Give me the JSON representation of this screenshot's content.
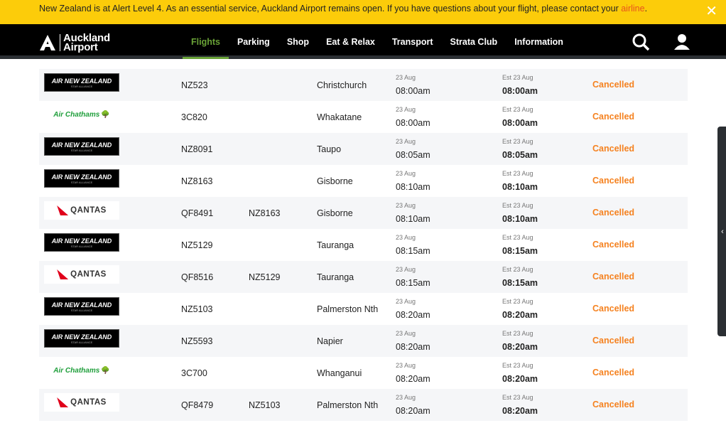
{
  "alert": {
    "text": "New Zealand is at Alert Level 4. As an essential service, Auckland Airport remains open. If you have questions about your flight, please contact your ",
    "link": "airline",
    "link_suffix": ".",
    "close": "✕"
  },
  "brand": {
    "line1": "Auckland",
    "line2": "Airport"
  },
  "nav": [
    "Flights",
    "Parking",
    "Shop",
    "Eat & Relax",
    "Transport",
    "Strata Club",
    "Information"
  ],
  "colors": {
    "accent": "#6aa337",
    "alert": "#fccc0a",
    "status": "#f58220"
  },
  "airlines": {
    "anz": {
      "name": "AIR NEW ZEALAND",
      "sub": "STAR ALLIANCE"
    },
    "chat": {
      "name": "Air Chathams"
    },
    "qantas": {
      "name": "QANTAS"
    }
  },
  "flights": [
    {
      "airline": "anz",
      "flight": "NZ523",
      "codeshare": "",
      "dest": "Christchurch",
      "sched_date": "23 Aug",
      "sched_time": "08:00am",
      "est_date": "Est 23 Aug",
      "est_time": "08:00am",
      "status": "Cancelled"
    },
    {
      "airline": "chat",
      "flight": "3C820",
      "codeshare": "",
      "dest": "Whakatane",
      "sched_date": "23 Aug",
      "sched_time": "08:00am",
      "est_date": "Est 23 Aug",
      "est_time": "08:00am",
      "status": "Cancelled"
    },
    {
      "airline": "anz",
      "flight": "NZ8091",
      "codeshare": "",
      "dest": "Taupo",
      "sched_date": "23 Aug",
      "sched_time": "08:05am",
      "est_date": "Est 23 Aug",
      "est_time": "08:05am",
      "status": "Cancelled"
    },
    {
      "airline": "anz",
      "flight": "NZ8163",
      "codeshare": "",
      "dest": "Gisborne",
      "sched_date": "23 Aug",
      "sched_time": "08:10am",
      "est_date": "Est 23 Aug",
      "est_time": "08:10am",
      "status": "Cancelled"
    },
    {
      "airline": "qantas",
      "flight": "QF8491",
      "codeshare": "NZ8163",
      "dest": "Gisborne",
      "sched_date": "23 Aug",
      "sched_time": "08:10am",
      "est_date": "Est 23 Aug",
      "est_time": "08:10am",
      "status": "Cancelled"
    },
    {
      "airline": "anz",
      "flight": "NZ5129",
      "codeshare": "",
      "dest": "Tauranga",
      "sched_date": "23 Aug",
      "sched_time": "08:15am",
      "est_date": "Est 23 Aug",
      "est_time": "08:15am",
      "status": "Cancelled"
    },
    {
      "airline": "qantas",
      "flight": "QF8516",
      "codeshare": "NZ5129",
      "dest": "Tauranga",
      "sched_date": "23 Aug",
      "sched_time": "08:15am",
      "est_date": "Est 23 Aug",
      "est_time": "08:15am",
      "status": "Cancelled"
    },
    {
      "airline": "anz",
      "flight": "NZ5103",
      "codeshare": "",
      "dest": "Palmerston Nth",
      "sched_date": "23 Aug",
      "sched_time": "08:20am",
      "est_date": "Est 23 Aug",
      "est_time": "08:20am",
      "status": "Cancelled"
    },
    {
      "airline": "anz",
      "flight": "NZ5593",
      "codeshare": "",
      "dest": "Napier",
      "sched_date": "23 Aug",
      "sched_time": "08:20am",
      "est_date": "Est 23 Aug",
      "est_time": "08:20am",
      "status": "Cancelled"
    },
    {
      "airline": "chat",
      "flight": "3C700",
      "codeshare": "",
      "dest": "Whanganui",
      "sched_date": "23 Aug",
      "sched_time": "08:20am",
      "est_date": "Est 23 Aug",
      "est_time": "08:20am",
      "status": "Cancelled"
    },
    {
      "airline": "qantas",
      "flight": "QF8479",
      "codeshare": "NZ5103",
      "dest": "Palmerston Nth",
      "sched_date": "23 Aug",
      "sched_time": "08:20am",
      "est_date": "Est 23 Aug",
      "est_time": "08:20am",
      "status": "Cancelled"
    }
  ],
  "sidetab": "‹"
}
